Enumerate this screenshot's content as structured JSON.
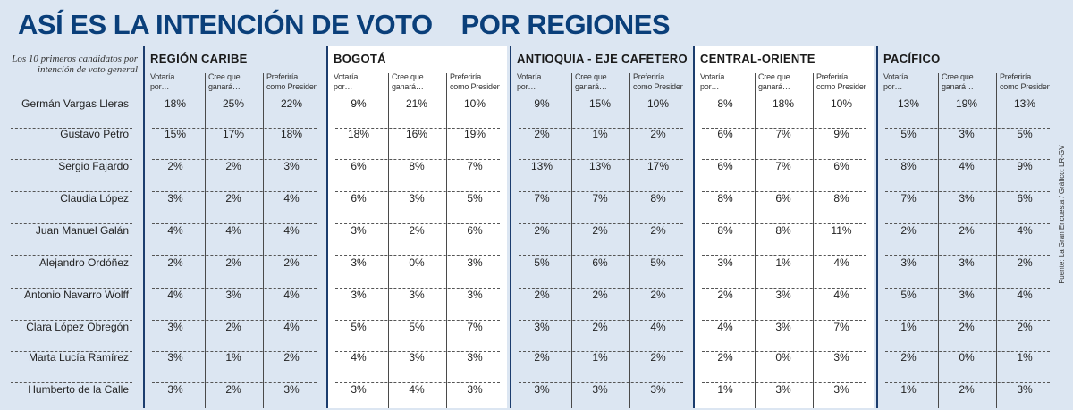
{
  "title": {
    "part1": "ASÍ ES LA INTENCIÓN DE VOTO",
    "part2": "POR REGIONES"
  },
  "caption": "Los 10 primeros candidatos por intención de voto general",
  "source": "Fuente: La Gran Encuesta / Gráfico: LR-GV",
  "colors": {
    "title": "#0a3f7a",
    "bg_blue": "#dce6f2",
    "bg_white": "#ffffff",
    "divider": "#1c3d6e"
  },
  "column_headers": [
    [
      "Votaría",
      "por…"
    ],
    [
      "Cree que",
      "ganará…"
    ],
    [
      "Preferiría",
      "como Presidente"
    ]
  ],
  "regions": [
    {
      "name": "REGIÓN CARIBE"
    },
    {
      "name": "BOGOTÁ"
    },
    {
      "name": "ANTIOQUIA - EJE CAFETERO"
    },
    {
      "name": "CENTRAL-ORIENTE"
    },
    {
      "name": "PACÍFICO"
    }
  ],
  "candidates": [
    {
      "name": "Germán Vargas Lleras",
      "values": [
        [
          "18%",
          "25%",
          "22%"
        ],
        [
          "9%",
          "21%",
          "10%"
        ],
        [
          "9%",
          "15%",
          "10%"
        ],
        [
          "8%",
          "18%",
          "10%"
        ],
        [
          "13%",
          "19%",
          "13%"
        ]
      ]
    },
    {
      "name": "Gustavo Petro",
      "values": [
        [
          "15%",
          "17%",
          "18%"
        ],
        [
          "18%",
          "16%",
          "19%"
        ],
        [
          "2%",
          "1%",
          "2%"
        ],
        [
          "6%",
          "7%",
          "9%"
        ],
        [
          "5%",
          "3%",
          "5%"
        ]
      ]
    },
    {
      "name": "Sergio Fajardo",
      "values": [
        [
          "2%",
          "2%",
          "3%"
        ],
        [
          "6%",
          "8%",
          "7%"
        ],
        [
          "13%",
          "13%",
          "17%"
        ],
        [
          "6%",
          "7%",
          "6%"
        ],
        [
          "8%",
          "4%",
          "9%"
        ]
      ]
    },
    {
      "name": "Claudia López",
      "values": [
        [
          "3%",
          "2%",
          "4%"
        ],
        [
          "6%",
          "3%",
          "5%"
        ],
        [
          "7%",
          "7%",
          "8%"
        ],
        [
          "8%",
          "6%",
          "8%"
        ],
        [
          "7%",
          "3%",
          "6%"
        ]
      ]
    },
    {
      "name": "Juan Manuel Galán",
      "values": [
        [
          "4%",
          "4%",
          "4%"
        ],
        [
          "3%",
          "2%",
          "6%"
        ],
        [
          "2%",
          "2%",
          "2%"
        ],
        [
          "8%",
          "8%",
          "11%"
        ],
        [
          "2%",
          "2%",
          "4%"
        ]
      ]
    },
    {
      "name": "Alejandro Ordóñez",
      "values": [
        [
          "2%",
          "2%",
          "2%"
        ],
        [
          "3%",
          "0%",
          "3%"
        ],
        [
          "5%",
          "6%",
          "5%"
        ],
        [
          "3%",
          "1%",
          "4%"
        ],
        [
          "3%",
          "3%",
          "2%"
        ]
      ]
    },
    {
      "name": "Antonio Navarro Wolff",
      "values": [
        [
          "4%",
          "3%",
          "4%"
        ],
        [
          "3%",
          "3%",
          "3%"
        ],
        [
          "2%",
          "2%",
          "2%"
        ],
        [
          "2%",
          "3%",
          "4%"
        ],
        [
          "5%",
          "3%",
          "4%"
        ]
      ]
    },
    {
      "name": "Clara López Obregón",
      "values": [
        [
          "3%",
          "2%",
          "4%"
        ],
        [
          "5%",
          "5%",
          "7%"
        ],
        [
          "3%",
          "2%",
          "4%"
        ],
        [
          "4%",
          "3%",
          "7%"
        ],
        [
          "1%",
          "2%",
          "2%"
        ]
      ]
    },
    {
      "name": "Marta Lucía Ramírez",
      "values": [
        [
          "3%",
          "1%",
          "2%"
        ],
        [
          "4%",
          "3%",
          "3%"
        ],
        [
          "2%",
          "1%",
          "2%"
        ],
        [
          "2%",
          "0%",
          "3%"
        ],
        [
          "2%",
          "0%",
          "1%"
        ]
      ]
    },
    {
      "name": "Humberto de la Calle",
      "values": [
        [
          "3%",
          "2%",
          "3%"
        ],
        [
          "3%",
          "4%",
          "3%"
        ],
        [
          "3%",
          "3%",
          "3%"
        ],
        [
          "1%",
          "3%",
          "3%"
        ],
        [
          "1%",
          "2%",
          "3%"
        ]
      ]
    }
  ]
}
